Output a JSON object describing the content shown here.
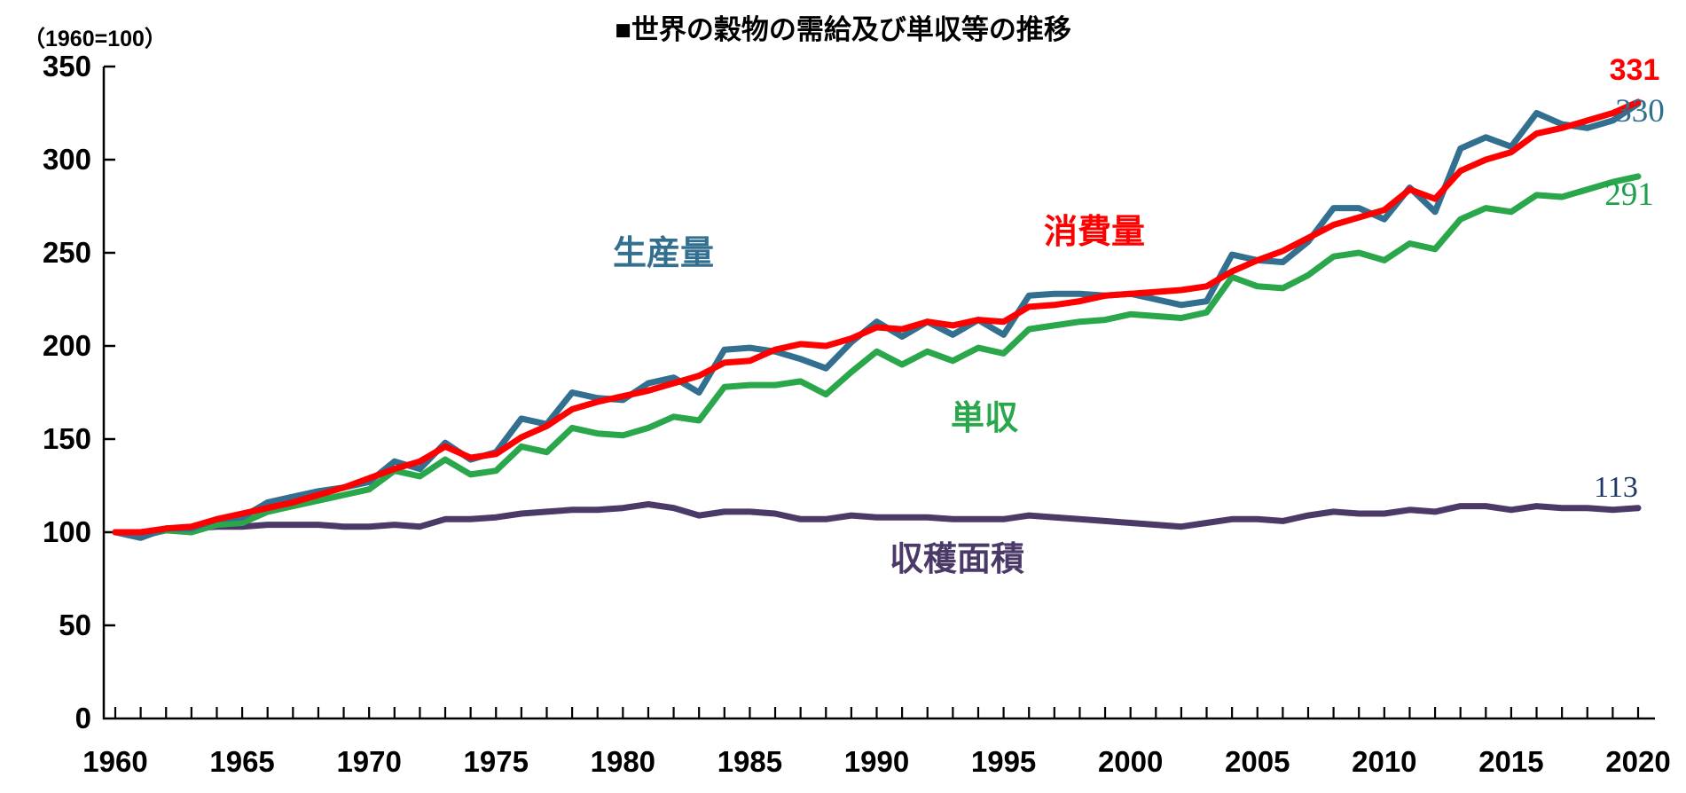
{
  "header": {
    "axis_note": "（1960=100）",
    "title": "■世界の穀物の需給及び単収等の推移"
  },
  "chart_data": {
    "type": "line",
    "title": "■世界の穀物の需給及び単収等の推移",
    "xlabel": "",
    "ylabel": "（1960=100）",
    "xlim": [
      1960,
      2020
    ],
    "ylim": [
      0,
      350
    ],
    "ytick_interval": 50,
    "xtick_interval": 5,
    "grid": false,
    "legend_position": "inline-labels",
    "x": [
      1960,
      1961,
      1962,
      1963,
      1964,
      1965,
      1966,
      1967,
      1968,
      1969,
      1970,
      1971,
      1972,
      1973,
      1974,
      1975,
      1976,
      1977,
      1978,
      1979,
      1980,
      1981,
      1982,
      1983,
      1984,
      1985,
      1986,
      1987,
      1988,
      1989,
      1990,
      1991,
      1992,
      1993,
      1994,
      1995,
      1996,
      1997,
      1998,
      1999,
      2000,
      2001,
      2002,
      2003,
      2004,
      2005,
      2006,
      2007,
      2008,
      2009,
      2010,
      2011,
      2012,
      2013,
      2014,
      2015,
      2016,
      2017,
      2018,
      2019,
      2020
    ],
    "xtick_labels": [
      "1960",
      "1965",
      "1970",
      "1975",
      "1980",
      "1985",
      "1990",
      "1995",
      "2000",
      "2005",
      "2010",
      "2015",
      "2020"
    ],
    "ytick_labels": [
      "0",
      "50",
      "100",
      "150",
      "200",
      "250",
      "300",
      "350"
    ],
    "series": [
      {
        "key": "area",
        "name": "収穫面積",
        "color": "#4b3a67",
        "end_label": "113",
        "end_label_color": "#1f3864",
        "values": [
          100,
          100,
          101,
          102,
          103,
          103,
          104,
          104,
          104,
          103,
          103,
          104,
          103,
          107,
          107,
          108,
          110,
          111,
          112,
          112,
          113,
          115,
          113,
          109,
          111,
          111,
          110,
          107,
          107,
          109,
          108,
          108,
          108,
          107,
          107,
          107,
          109,
          108,
          107,
          106,
          105,
          104,
          103,
          105,
          107,
          107,
          106,
          109,
          111,
          110,
          110,
          112,
          111,
          114,
          114,
          112,
          114,
          113,
          113,
          112,
          113
        ]
      },
      {
        "key": "yield",
        "name": "単収",
        "color": "#2ba74b",
        "end_label": "291",
        "end_label_color": "#1ea04c",
        "values": [
          100,
          98,
          101,
          100,
          104,
          105,
          111,
          114,
          117,
          120,
          123,
          133,
          130,
          139,
          131,
          133,
          146,
          143,
          156,
          153,
          152,
          156,
          162,
          160,
          178,
          179,
          179,
          181,
          174,
          186,
          197,
          190,
          197,
          192,
          199,
          196,
          209,
          211,
          213,
          214,
          217,
          216,
          215,
          218,
          237,
          232,
          231,
          238,
          248,
          250,
          246,
          255,
          252,
          268,
          274,
          272,
          281,
          280,
          284,
          288,
          291
        ]
      },
      {
        "key": "production",
        "name": "生産量",
        "color": "#336f8f",
        "end_label": "330",
        "end_label_color": "#336f8f",
        "values": [
          100,
          97,
          102,
          102,
          107,
          108,
          116,
          119,
          122,
          124,
          127,
          138,
          134,
          148,
          139,
          143,
          161,
          158,
          175,
          172,
          171,
          180,
          183,
          175,
          198,
          199,
          197,
          193,
          188,
          202,
          213,
          205,
          213,
          206,
          214,
          206,
          227,
          228,
          228,
          227,
          228,
          225,
          222,
          224,
          249,
          246,
          245,
          256,
          274,
          274,
          268,
          285,
          272,
          306,
          312,
          307,
          325,
          319,
          317,
          321,
          330
        ]
      },
      {
        "key": "consumption",
        "name": "消費量",
        "color": "#ff0000",
        "end_label": "331",
        "end_label_color": "#ff0000",
        "values": [
          100,
          100,
          102,
          103,
          107,
          110,
          113,
          116,
          120,
          124,
          129,
          134,
          138,
          146,
          140,
          142,
          151,
          157,
          166,
          170,
          173,
          176,
          180,
          184,
          191,
          192,
          198,
          201,
          200,
          204,
          210,
          209,
          213,
          211,
          214,
          213,
          221,
          222,
          224,
          227,
          228,
          229,
          230,
          232,
          240,
          246,
          251,
          258,
          265,
          269,
          273,
          284,
          279,
          294,
          300,
          304,
          314,
          317,
          321,
          325,
          331
        ]
      }
    ]
  }
}
